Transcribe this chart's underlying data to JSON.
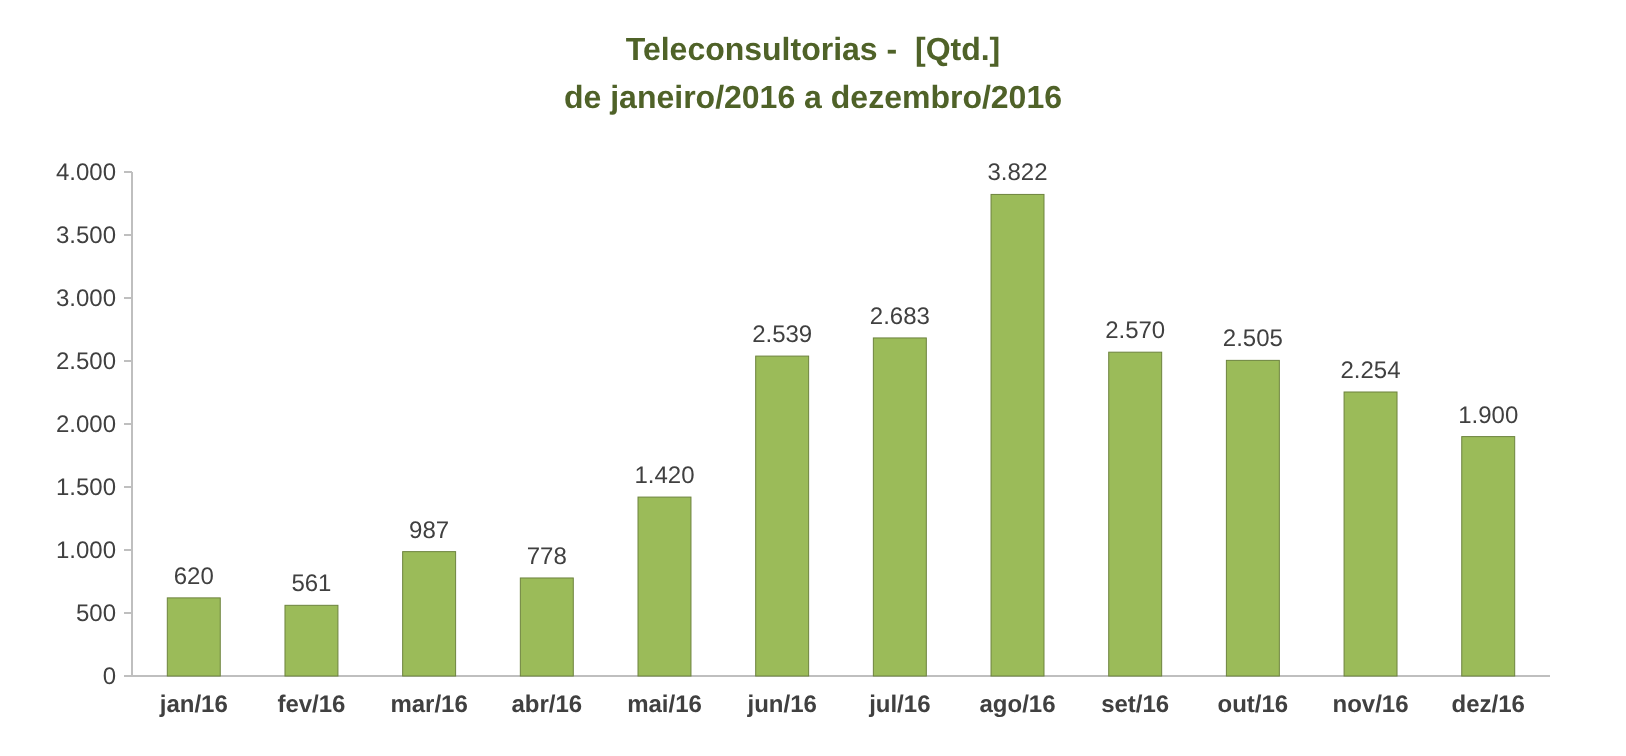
{
  "chart_data": {
    "type": "bar",
    "title": "Teleconsultorias -  [Qtd.]",
    "subtitle": "de janeiro/2016 a dezembro/2016",
    "categories": [
      "jan/16",
      "fev/16",
      "mar/16",
      "abr/16",
      "mai/16",
      "jun/16",
      "jul/16",
      "ago/16",
      "set/16",
      "out/16",
      "nov/16",
      "dez/16"
    ],
    "values": [
      620,
      561,
      987,
      778,
      1420,
      2539,
      2683,
      3822,
      2570,
      2505,
      2254,
      1900
    ],
    "value_labels": [
      "620",
      "561",
      "987",
      "778",
      "1.420",
      "2.539",
      "2.683",
      "3.822",
      "2.570",
      "2.505",
      "2.254",
      "1.900"
    ],
    "color": "#9bbb59",
    "ylim": [
      0,
      4000
    ],
    "yticks": [
      0,
      500,
      {
        "value": 1000,
        "label": "1.000"
      },
      {
        "value": 1500,
        "label": "1.500"
      },
      {
        "value": 2000,
        "label": "2.000"
      },
      {
        "value": 2500,
        "label": "2.500"
      },
      {
        "value": 3000,
        "label": "3.000"
      },
      {
        "value": 3500,
        "label": "3.500"
      },
      {
        "value": 4000,
        "label": "4.000"
      }
    ],
    "grid": false
  }
}
